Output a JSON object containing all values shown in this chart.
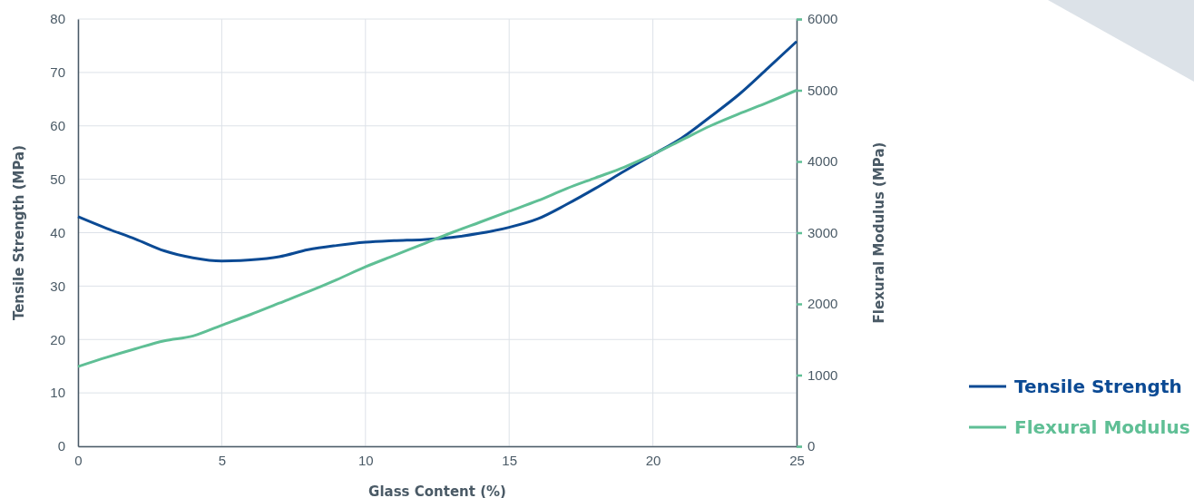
{
  "chart_data": {
    "type": "line",
    "xlabel": "Glass Content (%)",
    "ylabel": "Tensile Strength (MPa)",
    "y2label": "Flexural Modulus (MPa)",
    "x": [
      0,
      1,
      2,
      3,
      4,
      5,
      6,
      7,
      8,
      9,
      10,
      11,
      12,
      13,
      14,
      15,
      16,
      17,
      18,
      19,
      20,
      21,
      22,
      23,
      24,
      25
    ],
    "series": [
      {
        "name": "Tensile Strength",
        "color": "#0b4a94",
        "values": [
          43,
          40.8,
          38.8,
          36.6,
          35.3,
          34.7,
          34.9,
          35.5,
          36.8,
          37.6,
          38.2,
          38.5,
          38.7,
          39.1,
          39.9,
          41.0,
          42.6,
          45.3,
          48.3,
          51.5,
          54.6,
          57.7,
          61.7,
          65.9,
          70.8,
          75.8
        ]
      },
      {
        "name": "Flexural Modulus",
        "color": "#5fbf95",
        "axis": "y2",
        "values": [
          1120,
          1250,
          1370,
          1480,
          1550,
          1700,
          1850,
          2010,
          2170,
          2340,
          2520,
          2680,
          2840,
          3000,
          3150,
          3300,
          3450,
          3620,
          3770,
          3920,
          4100,
          4300,
          4500,
          4670,
          4830,
          5000
        ]
      }
    ],
    "xlim": [
      0,
      25
    ],
    "xticks": [
      0,
      5,
      10,
      15,
      20,
      25
    ],
    "ylim": [
      0,
      80
    ],
    "yticks": [
      0,
      10,
      20,
      30,
      40,
      50,
      60,
      70,
      80
    ],
    "y2lim": [
      0,
      6000
    ],
    "y2ticks": [
      0,
      1000,
      2000,
      3000,
      4000,
      5000,
      6000
    ],
    "grid": true,
    "legend": "right",
    "marker": "none",
    "line_style": "solid"
  }
}
